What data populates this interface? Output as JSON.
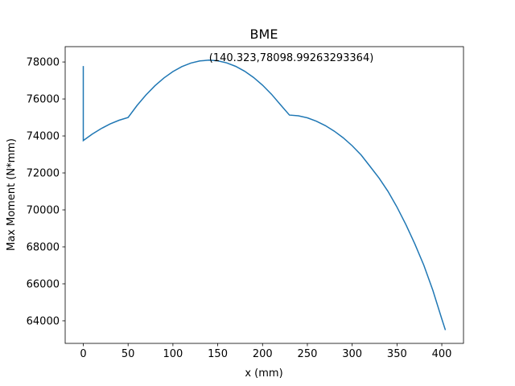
{
  "chart_data": {
    "type": "line",
    "title": "BME",
    "x_label": "x (mm)",
    "y_label": "Max Moment (N*mm)",
    "x": [
      0,
      0,
      10,
      20,
      30,
      40,
      50,
      60,
      70,
      80,
      90,
      100,
      110,
      120,
      130,
      140.323,
      150,
      160,
      170,
      180,
      190,
      200,
      210,
      220,
      230,
      240,
      250,
      260,
      270,
      280,
      290,
      300,
      310,
      320,
      330,
      340,
      350,
      360,
      370,
      380,
      390,
      400,
      404
    ],
    "series": [
      {
        "name": "BME",
        "color": "#1f77b4",
        "values": [
          77780,
          73750,
          74100,
          74400,
          74650,
          74850,
          75000,
          75649,
          76221,
          76717,
          77136,
          77481,
          77750,
          77942,
          78058,
          78098.99263293364,
          78063,
          77952,
          77765,
          77501,
          77162,
          76747,
          76255,
          75688,
          75130,
          75090,
          74980,
          74800,
          74560,
          74260,
          73900,
          73470,
          72970,
          72350,
          71720,
          71000,
          70150,
          69200,
          68150,
          67000,
          65650,
          64100,
          63500
        ]
      }
    ],
    "annotation": {
      "text": "(140.323,78098.99263293364)",
      "x": 140.323,
      "y": 78098.99263293364
    },
    "xlim": [
      -20.2,
      424.2
    ],
    "ylim": [
      62780,
      78830
    ],
    "xticks": [
      0,
      50,
      100,
      150,
      200,
      250,
      300,
      350,
      400
    ],
    "yticks": [
      64000,
      66000,
      68000,
      70000,
      72000,
      74000,
      76000,
      78000
    ]
  }
}
